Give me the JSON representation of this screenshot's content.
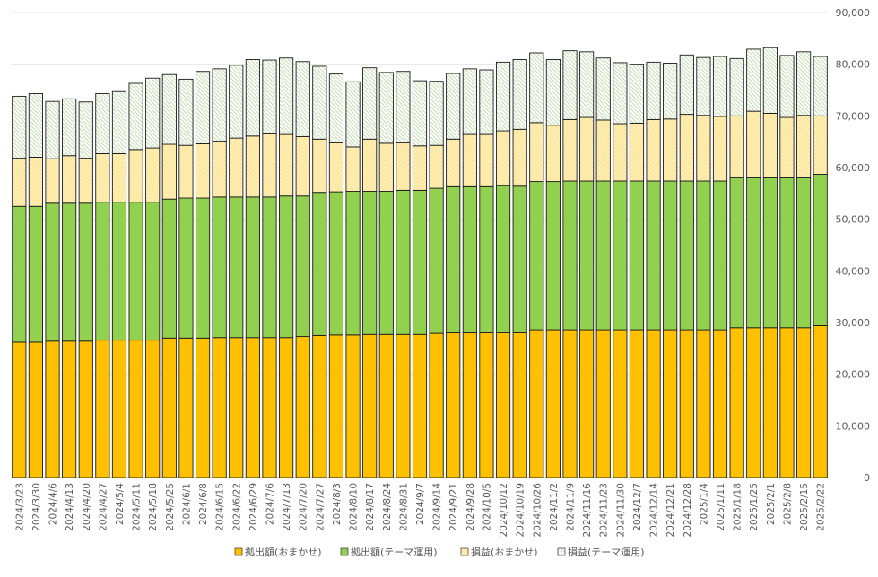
{
  "chart_data": {
    "type": "bar",
    "stacked": true,
    "title": "",
    "xlabel": "",
    "ylabel": "",
    "ylim": [
      0,
      90000
    ],
    "y_ticks": [
      "0",
      "10,000",
      "20,000",
      "30,000",
      "40,000",
      "50,000",
      "60,000",
      "70,000",
      "80,000",
      "90,000"
    ],
    "y_axis_side": "right",
    "grid": true,
    "legend_position": "bottom",
    "categories": [
      "2024/3/23",
      "2024/3/30",
      "2024/4/6",
      "2024/4/13",
      "2024/4/20",
      "2024/4/27",
      "2024/5/4",
      "2024/5/11",
      "2024/5/18",
      "2024/5/25",
      "2024/6/1",
      "2024/6/8",
      "2024/6/15",
      "2024/6/22",
      "2024/6/29",
      "2024/7/6",
      "2024/7/13",
      "2024/7/20",
      "2024/7/27",
      "2024/8/3",
      "2024/8/10",
      "2024/8/17",
      "2024/8/24",
      "2024/8/31",
      "2024/9/7",
      "2024/9/14",
      "2024/9/21",
      "2024/9/28",
      "2024/10/5",
      "2024/10/12",
      "2024/10/19",
      "2024/10/26",
      "2024/11/2",
      "2024/11/9",
      "2024/11/16",
      "2024/11/23",
      "2024/11/30",
      "2024/12/7",
      "2024/12/14",
      "2024/12/21",
      "2024/12/28",
      "2025/1/4",
      "2025/1/11",
      "2025/1/18",
      "2025/1/25",
      "2025/2/1",
      "2025/2/8",
      "2025/2/15",
      "2025/2/22"
    ],
    "series": [
      {
        "name": "拠出額(おまかせ)",
        "color": "#ffc000",
        "pattern": "solid",
        "values": [
          26200,
          26200,
          26400,
          26400,
          26400,
          26600,
          26600,
          26600,
          26600,
          27000,
          27000,
          27000,
          27100,
          27100,
          27100,
          27100,
          27100,
          27300,
          27500,
          27600,
          27600,
          27700,
          27700,
          27700,
          27700,
          27900,
          28000,
          28000,
          28000,
          28000,
          28000,
          28600,
          28600,
          28600,
          28600,
          28600,
          28600,
          28600,
          28600,
          28600,
          28600,
          28600,
          28600,
          29000,
          29000,
          29000,
          29000,
          29000,
          29400
        ]
      },
      {
        "name": "拠出額(テーマ運用)",
        "color": "#92d050",
        "pattern": "solid",
        "values": [
          26300,
          26300,
          26700,
          26700,
          26700,
          26700,
          26700,
          26700,
          26700,
          26900,
          27100,
          27100,
          27200,
          27200,
          27200,
          27200,
          27400,
          27200,
          27700,
          27700,
          27800,
          27700,
          27700,
          27900,
          27900,
          28100,
          28300,
          28300,
          28300,
          28500,
          28400,
          28700,
          28700,
          28800,
          28800,
          28800,
          28800,
          28800,
          28800,
          28800,
          28800,
          28800,
          28800,
          29000,
          29000,
          29000,
          29000,
          29000,
          29300
        ]
      },
      {
        "name": "損益(おまかせ)",
        "color": "#ffe699",
        "pattern": "diag",
        "values": [
          9300,
          9500,
          8600,
          9200,
          8700,
          9400,
          9400,
          10200,
          10500,
          10600,
          10200,
          10500,
          10800,
          11400,
          11800,
          12200,
          11900,
          11500,
          10300,
          9500,
          8600,
          10100,
          9300,
          9200,
          8600,
          8300,
          9200,
          10100,
          10100,
          10600,
          11000,
          11400,
          10900,
          11900,
          12300,
          11800,
          11100,
          11200,
          11900,
          12000,
          12900,
          12700,
          12500,
          12000,
          12900,
          12500,
          11700,
          12100,
          11300
        ]
      },
      {
        "name": "損益(テーマ運用)",
        "color": "#c5e0b4",
        "pattern": "diag",
        "values": [
          12000,
          12300,
          11100,
          11000,
          10900,
          11600,
          12000,
          12800,
          13500,
          13500,
          12800,
          14000,
          14000,
          14100,
          14800,
          14300,
          14800,
          14500,
          14100,
          13300,
          12600,
          13800,
          13700,
          13800,
          12600,
          12400,
          12700,
          12700,
          12500,
          13300,
          13500,
          13500,
          12700,
          13300,
          12700,
          12000,
          11800,
          11400,
          11100,
          10800,
          11500,
          11200,
          11600,
          11100,
          12000,
          12700,
          12000,
          12300,
          11500
        ]
      }
    ]
  }
}
